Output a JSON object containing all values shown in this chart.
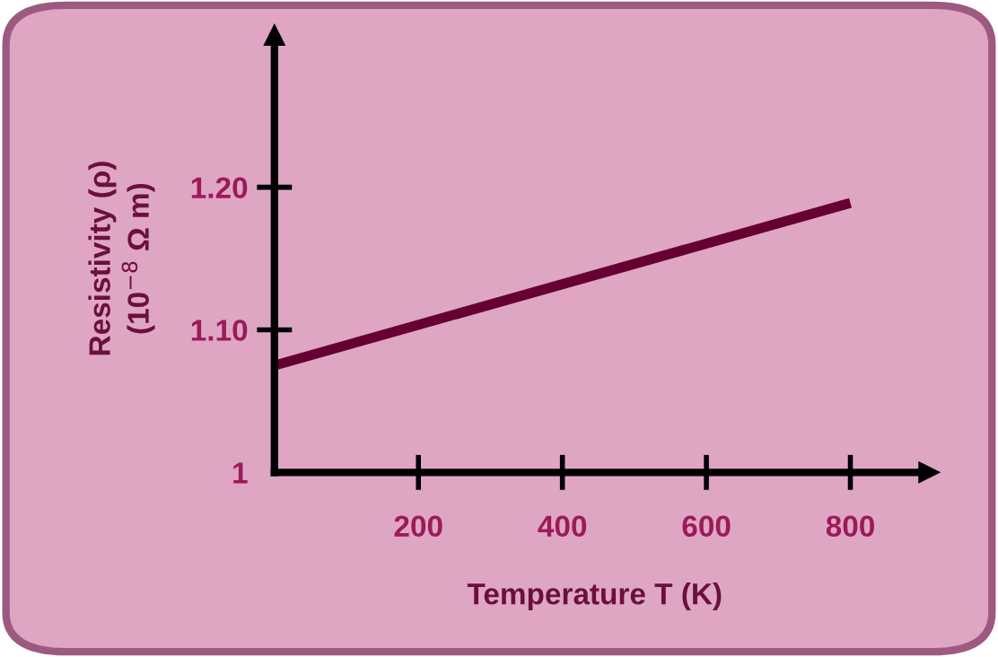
{
  "chart_data": {
    "type": "line",
    "xlabel": "Temperature T (K)",
    "ylabel": "Resistivity (ρ)\n(10$^{−8}$ Ω m)",
    "x": [
      0,
      800
    ],
    "series": [
      {
        "color": "#660033",
        "values": [
          1.075,
          1.189
        ]
      }
    ],
    "xlim": [
      0,
      890
    ],
    "ylim": [
      1.0,
      1.3
    ],
    "xticks": [
      200,
      400,
      600,
      800
    ],
    "yticks": [
      {
        "value": 1.0,
        "label": "1"
      },
      {
        "value": 1.1,
        "label": "1.10"
      },
      {
        "value": 1.2,
        "label": "1.20"
      }
    ],
    "grid": false,
    "legend": false,
    "marker": "none",
    "line_style": "solid"
  }
}
